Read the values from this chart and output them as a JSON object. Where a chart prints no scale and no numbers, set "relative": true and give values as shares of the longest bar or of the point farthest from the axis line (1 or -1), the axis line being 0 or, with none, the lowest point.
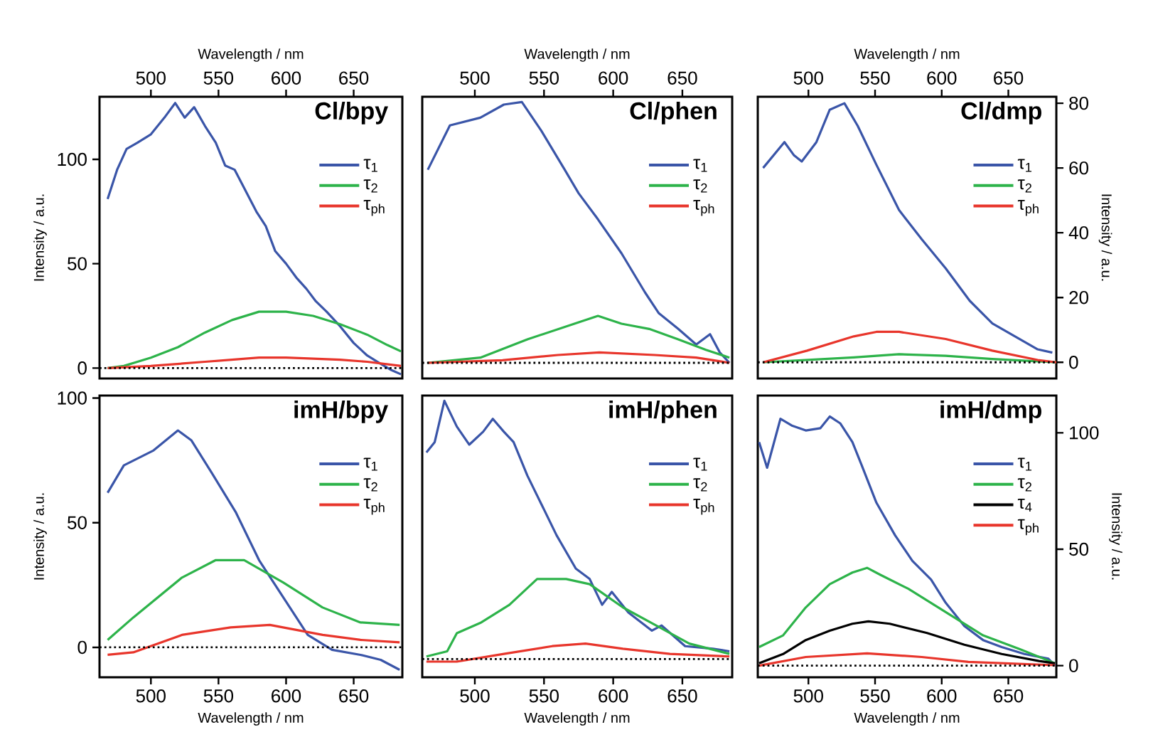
{
  "chart_data": [
    {
      "type": "line",
      "title": "Cl/bpy",
      "xlabel": "Wavelength / nm",
      "xlim": [
        462,
        686
      ],
      "xticks": [
        500,
        550,
        600,
        650
      ],
      "ylabel": "Intensity / a.u.",
      "ylim": [
        -5,
        130
      ],
      "yticks": [
        0,
        50,
        100
      ],
      "legend": "top right",
      "ref_lines": [
        {
          "axis": "y",
          "value": 0,
          "color": "#000000",
          "line_style": "dotted"
        }
      ],
      "series": [
        {
          "name": "τ$_{1}$",
          "color": "#3a55a8",
          "x": [
            468,
            475,
            482,
            490,
            500,
            510,
            518,
            525,
            532,
            540,
            548,
            555,
            562,
            570,
            578,
            585,
            592,
            600,
            608,
            615,
            622,
            630,
            640,
            650,
            660,
            670,
            678,
            685
          ],
          "values": [
            81,
            95,
            105,
            108,
            112,
            120,
            127,
            120,
            125,
            116,
            108,
            97,
            95,
            85,
            75,
            68,
            56,
            50,
            43,
            38,
            32,
            27,
            20,
            12,
            6,
            2,
            -1,
            -3
          ]
        },
        {
          "name": "τ$_{2}$",
          "color": "#2db34a",
          "x": [
            468,
            480,
            500,
            520,
            540,
            560,
            580,
            600,
            620,
            640,
            660,
            675,
            685
          ],
          "values": [
            0,
            1,
            5,
            10,
            17,
            23,
            27,
            27,
            25,
            21,
            16,
            11,
            8
          ]
        },
        {
          "name": "τ$_{ph}$",
          "color": "#e8352b",
          "x": [
            468,
            500,
            540,
            580,
            600,
            640,
            660,
            685
          ],
          "values": [
            0,
            1,
            3,
            5,
            5,
            4,
            3,
            1
          ]
        }
      ]
    },
    {
      "type": "line",
      "title": "Cl/phen",
      "xlabel": "Wavelength / nm",
      "xlim": [
        462,
        686
      ],
      "xticks": [
        500,
        550,
        600,
        650
      ],
      "relative": true,
      "tick_labels": "x",
      "legend": "top right",
      "ref_lines": [
        {
          "axis": "y",
          "value": 0,
          "color": "#000000",
          "line_style": "dotted"
        }
      ],
      "series": [
        {
          "name": "τ$_{1}$",
          "color": "#3a55a8",
          "x": [
            466,
            482,
            504,
            521,
            534,
            548,
            565,
            575,
            589,
            606,
            623,
            633,
            647,
            660,
            670,
            677,
            684
          ],
          "values": [
            0.74,
            0.91,
            0.94,
            0.99,
            1.0,
            0.89,
            0.74,
            0.65,
            0.55,
            0.42,
            0.27,
            0.19,
            0.13,
            0.07,
            0.11,
            0.04,
            0
          ]
        },
        {
          "name": "τ$_{2}$",
          "color": "#2db34a",
          "x": [
            466,
            504,
            538,
            572,
            589,
            606,
            626,
            647,
            667,
            684
          ],
          "values": [
            0,
            0.02,
            0.09,
            0.15,
            0.18,
            0.15,
            0.13,
            0.09,
            0.05,
            0.02
          ]
        },
        {
          "name": "τ$_{ph}$",
          "color": "#e8352b",
          "x": [
            466,
            520,
            560,
            590,
            630,
            660,
            684
          ],
          "values": [
            0,
            0.01,
            0.03,
            0.04,
            0.03,
            0.02,
            0
          ]
        }
      ]
    },
    {
      "type": "line",
      "title": "Cl/dmp",
      "xlabel": "Wavelength / nm",
      "xlim": [
        462,
        686
      ],
      "xticks": [
        500,
        550,
        600,
        650
      ],
      "ylabel": "Intensity / a.u.",
      "ylim": [
        -5,
        82
      ],
      "yticks": [
        0,
        20,
        40,
        60,
        80
      ],
      "legend": "top right",
      "ref_lines": [
        {
          "axis": "y",
          "value": 0,
          "color": "#000000",
          "line_style": "dotted"
        }
      ],
      "series": [
        {
          "name": "τ$_{1}$",
          "color": "#3a55a8",
          "x": [
            466,
            482,
            489,
            495,
            506,
            516,
            527,
            537,
            551,
            568,
            585,
            603,
            621,
            638,
            655,
            672,
            683
          ],
          "values": [
            60,
            68,
            64,
            62,
            68,
            78,
            80,
            73,
            61,
            47,
            38,
            29,
            19,
            12,
            8,
            4,
            3
          ]
        },
        {
          "name": "τ$_{2}$",
          "color": "#2db34a",
          "x": [
            466,
            534,
            568,
            603,
            638,
            686
          ],
          "values": [
            0,
            1.5,
            2.5,
            2,
            1,
            0
          ]
        },
        {
          "name": "τ$_{ph}$",
          "color": "#e8352b",
          "x": [
            466,
            499,
            534,
            551,
            568,
            603,
            638,
            672,
            686
          ],
          "values": [
            0,
            3.6,
            8,
            9.4,
            9.4,
            7.2,
            3.6,
            0.7,
            0
          ]
        }
      ]
    },
    {
      "type": "line",
      "title": "imH/bpy",
      "xlabel": "Wavelength / nm",
      "xlim": [
        462,
        686
      ],
      "xticks": [
        500,
        550,
        600,
        650
      ],
      "ylabel": "Intensity / a.u.",
      "ylim": [
        -12,
        101
      ],
      "yticks": [
        0,
        50,
        100
      ],
      "legend": "top right",
      "ref_lines": [
        {
          "axis": "y",
          "value": 0,
          "color": "#000000",
          "line_style": "dotted"
        }
      ],
      "series": [
        {
          "name": "τ$_{1}$",
          "color": "#3a55a8",
          "x": [
            468,
            480,
            502,
            520,
            530,
            545,
            563,
            580,
            598,
            616,
            634,
            655,
            670,
            684
          ],
          "values": [
            62,
            73,
            79,
            87,
            83,
            70,
            54,
            35,
            20,
            5,
            -1,
            -3,
            -5,
            -9
          ]
        },
        {
          "name": "τ$_{2}$",
          "color": "#2db34a",
          "x": [
            468,
            487,
            523,
            548,
            569,
            598,
            627,
            655,
            684
          ],
          "values": [
            3,
            12,
            28,
            35,
            35,
            26,
            16,
            10,
            9
          ]
        },
        {
          "name": "τ$_{ph}$",
          "color": "#e8352b",
          "x": [
            468,
            487,
            523,
            559,
            588,
            627,
            655,
            684
          ],
          "values": [
            -3,
            -2,
            5,
            8,
            9,
            5,
            3,
            2
          ]
        }
      ]
    },
    {
      "type": "line",
      "title": "imH/phen",
      "xlabel": "Wavelength / nm",
      "xlim": [
        462,
        686
      ],
      "xticks": [
        500,
        550,
        600,
        650
      ],
      "relative": true,
      "tick_labels": "x",
      "legend": "top right",
      "ref_lines": [
        {
          "axis": "y",
          "value": 0,
          "color": "#000000",
          "line_style": "dotted"
        }
      ],
      "series": [
        {
          "name": "τ$_{1}$",
          "color": "#3a55a8",
          "x": [
            465,
            471,
            478,
            487,
            496,
            506,
            513,
            521,
            528,
            538,
            549,
            559,
            573,
            583,
            592,
            599,
            611,
            628,
            635,
            652,
            672,
            684
          ],
          "values": [
            0.8,
            0.84,
            1.0,
            0.9,
            0.83,
            0.88,
            0.93,
            0.88,
            0.84,
            0.71,
            0.59,
            0.48,
            0.35,
            0.31,
            0.21,
            0.26,
            0.18,
            0.11,
            0.13,
            0.05,
            0.04,
            0.03
          ]
        },
        {
          "name": "τ$_{2}$",
          "color": "#2db34a",
          "x": [
            465,
            480,
            487,
            504,
            525,
            545,
            566,
            583,
            607,
            631,
            655,
            684
          ],
          "values": [
            0.01,
            0.03,
            0.1,
            0.14,
            0.21,
            0.31,
            0.31,
            0.29,
            0.2,
            0.13,
            0.06,
            0.02
          ]
        },
        {
          "name": "τ$_{ph}$",
          "color": "#e8352b",
          "x": [
            465,
            487,
            521,
            556,
            580,
            607,
            641,
            684
          ],
          "values": [
            -0.01,
            -0.01,
            0.02,
            0.05,
            0.06,
            0.04,
            0.02,
            0.01
          ]
        }
      ]
    },
    {
      "type": "line",
      "title": "imH/dmp",
      "xlabel": "Wavelength / nm",
      "xlim": [
        462,
        686
      ],
      "xticks": [
        500,
        550,
        600,
        650
      ],
      "ylabel": "Intensity / a.u.",
      "ylim": [
        -5,
        116
      ],
      "yticks": [
        0,
        50,
        100
      ],
      "legend": "top right",
      "ref_lines": [
        {
          "axis": "y",
          "value": 0,
          "color": "#000000",
          "line_style": "dotted"
        }
      ],
      "series": [
        {
          "name": "τ$_{1}$",
          "color": "#3a55a8",
          "x": [
            463,
            469,
            479,
            488,
            498,
            509,
            516,
            524,
            533,
            540,
            551,
            565,
            578,
            592,
            603,
            617,
            631,
            645,
            662,
            680,
            685
          ],
          "values": [
            96,
            85,
            106,
            103,
            101,
            102,
            107,
            104,
            96,
            86,
            70,
            56,
            45,
            37,
            27,
            17,
            11,
            8,
            5,
            3,
            0
          ]
        },
        {
          "name": "τ$_{2}$",
          "color": "#2db34a",
          "x": [
            463,
            481,
            498,
            516,
            533,
            544,
            554,
            575,
            603,
            631,
            659,
            685
          ],
          "values": [
            8,
            13,
            25,
            35,
            40,
            42,
            39,
            33,
            23,
            13,
            7,
            1
          ]
        },
        {
          "name": "τ$_{4}$",
          "color": "#000000",
          "x": [
            463,
            481,
            498,
            516,
            533,
            545,
            561,
            589,
            617,
            645,
            673,
            685
          ],
          "values": [
            1,
            5,
            11,
            15,
            18,
            19,
            18,
            14,
            9,
            5,
            2,
            1
          ]
        },
        {
          "name": "τ$_{ph}$",
          "color": "#e8352b",
          "x": [
            463,
            498,
            544,
            585,
            620,
            685
          ],
          "values": [
            0,
            3.7,
            5.3,
            3.7,
            1.6,
            0.2
          ]
        }
      ]
    }
  ]
}
